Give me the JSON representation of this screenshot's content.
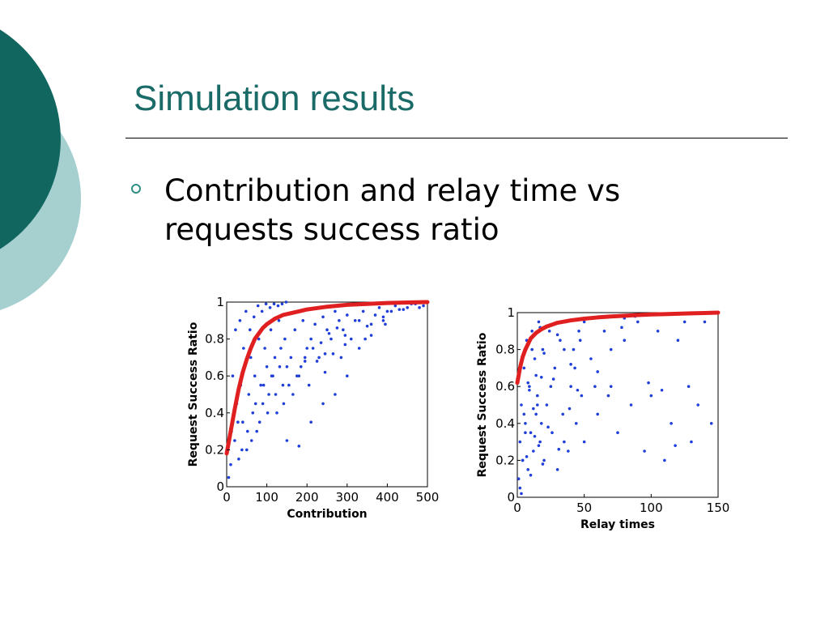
{
  "slide": {
    "title": "Simulation results",
    "bullet_lines": [
      "Contribution and relay time vs",
      "requests success ratio"
    ]
  },
  "theme": {
    "accent_dark": "#116760",
    "accent_light": "#a6cfcf",
    "title_color": "#1a6b68",
    "bullet_color": "#2f8e86"
  },
  "chart_data": [
    {
      "type": "scatter",
      "xlabel": "Contribution",
      "ylabel": "Request Success Ratio",
      "xlim": [
        0,
        500
      ],
      "ylim": [
        0,
        1
      ],
      "xticks": [
        "0",
        "100",
        "200",
        "300",
        "400",
        "500"
      ],
      "yticks": [
        "0",
        "0.2",
        "0.4",
        "0.6",
        "0.8",
        "1"
      ],
      "series": [
        {
          "kind": "scatter",
          "color": "#1f3fd8",
          "x": [
            5,
            10,
            12,
            20,
            25,
            30,
            35,
            40,
            45,
            50,
            55,
            60,
            65,
            70,
            75,
            80,
            85,
            90,
            95,
            100,
            105,
            110,
            115,
            120,
            125,
            130,
            135,
            140,
            145,
            150,
            160,
            170,
            180,
            190,
            200,
            210,
            220,
            230,
            240,
            250,
            260,
            270,
            280,
            290,
            300,
            320,
            340,
            360,
            380,
            400,
            420,
            440,
            460,
            480,
            500,
            15,
            22,
            28,
            33,
            38,
            42,
            48,
            52,
            58,
            62,
            68,
            72,
            78,
            82,
            88,
            92,
            98,
            102,
            108,
            112,
            118,
            122,
            128,
            132,
            138,
            142,
            148,
            155,
            165,
            175,
            185,
            195,
            205,
            215,
            225,
            235,
            245,
            255,
            265,
            275,
            285,
            295,
            310,
            330,
            350,
            370,
            390,
            410,
            430,
            450,
            470,
            490,
            150,
            180,
            210,
            240,
            270,
            300,
            330,
            360,
            390,
            195,
            245,
            295,
            345,
            395
          ],
          "y": [
            0.05,
            0.12,
            0.3,
            0.25,
            0.45,
            0.15,
            0.55,
            0.35,
            0.65,
            0.2,
            0.5,
            0.7,
            0.4,
            0.6,
            0.3,
            0.8,
            0.55,
            0.45,
            0.75,
            0.65,
            0.5,
            0.85,
            0.6,
            0.7,
            0.4,
            0.9,
            0.75,
            0.55,
            0.8,
            0.65,
            0.7,
            0.85,
            0.6,
            0.9,
            0.75,
            0.8,
            0.88,
            0.7,
            0.92,
            0.85,
            0.8,
            0.95,
            0.9,
            0.85,
            0.93,
            0.9,
            0.95,
            0.88,
            0.97,
            0.95,
            0.98,
            0.96,
            0.99,
            0.97,
            1.0,
            0.6,
            0.85,
            0.35,
            0.9,
            0.2,
            0.75,
            0.95,
            0.3,
            0.85,
            0.25,
            0.92,
            0.45,
            0.98,
            0.35,
            0.95,
            0.55,
            0.99,
            0.4,
            0.97,
            0.6,
            0.99,
            0.5,
            0.98,
            0.65,
            0.99,
            0.45,
            1.0,
            0.55,
            0.5,
            0.6,
            0.65,
            0.7,
            0.55,
            0.75,
            0.68,
            0.78,
            0.62,
            0.83,
            0.72,
            0.86,
            0.7,
            0.82,
            0.8,
            0.9,
            0.87,
            0.93,
            0.92,
            0.95,
            0.96,
            0.97,
            0.99,
            0.98,
            0.25,
            0.22,
            0.35,
            0.45,
            0.5,
            0.6,
            0.75,
            0.82,
            0.9,
            0.68,
            0.72,
            0.77,
            0.8,
            0.88
          ]
        },
        {
          "kind": "line",
          "color": "#e02020",
          "x": [
            0,
            10,
            20,
            30,
            40,
            50,
            60,
            70,
            80,
            90,
            100,
            120,
            140,
            160,
            180,
            200,
            250,
            300,
            350,
            400,
            450,
            500
          ],
          "y": [
            0.18,
            0.3,
            0.42,
            0.53,
            0.62,
            0.69,
            0.75,
            0.8,
            0.83,
            0.86,
            0.88,
            0.91,
            0.93,
            0.94,
            0.95,
            0.96,
            0.975,
            0.985,
            0.99,
            0.995,
            0.998,
            1.0
          ]
        }
      ]
    },
    {
      "type": "scatter",
      "xlabel": "Relay times",
      "ylabel": "Request Success Ratio",
      "xlim": [
        0,
        150
      ],
      "ylim": [
        0,
        1
      ],
      "xticks": [
        "0",
        "50",
        "100",
        "150"
      ],
      "yticks": [
        "0",
        "0.2",
        "0.4",
        "0.6",
        "0.8",
        "1"
      ],
      "series": [
        {
          "kind": "scatter",
          "color": "#1f3fd8",
          "x": [
            1,
            2,
            3,
            4,
            5,
            6,
            7,
            8,
            9,
            10,
            11,
            12,
            13,
            14,
            15,
            16,
            17,
            18,
            19,
            20,
            22,
            24,
            26,
            28,
            30,
            32,
            34,
            36,
            38,
            40,
            42,
            44,
            46,
            48,
            50,
            55,
            60,
            65,
            70,
            75,
            80,
            85,
            90,
            95,
            100,
            105,
            110,
            115,
            120,
            125,
            130,
            135,
            140,
            145,
            2,
            4,
            6,
            8,
            10,
            12,
            14,
            16,
            18,
            20,
            25,
            30,
            35,
            40,
            45,
            50,
            60,
            70,
            80,
            3,
            5,
            7,
            9,
            11,
            13,
            15,
            17,
            19,
            23,
            27,
            31,
            35,
            39,
            43,
            47,
            58,
            68,
            78,
            88,
            98,
            108,
            118,
            128
          ],
          "y": [
            0.1,
            0.3,
            0.5,
            0.2,
            0.7,
            0.4,
            0.85,
            0.15,
            0.6,
            0.35,
            0.9,
            0.25,
            0.75,
            0.45,
            0.55,
            0.95,
            0.3,
            0.65,
            0.8,
            0.2,
            0.5,
            0.9,
            0.35,
            0.7,
            0.15,
            0.85,
            0.45,
            0.95,
            0.25,
            0.6,
            0.8,
            0.4,
            0.9,
            0.55,
            0.3,
            0.75,
            0.45,
            0.9,
            0.6,
            0.35,
            0.85,
            0.5,
            0.95,
            0.25,
            0.55,
            0.9,
            0.2,
            0.4,
            0.85,
            0.95,
            0.3,
            0.5,
            0.95,
            0.4,
            0.05,
            0.2,
            0.35,
            0.62,
            0.12,
            0.48,
            0.66,
            0.28,
            0.4,
            0.78,
            0.6,
            0.88,
            0.3,
            0.72,
            0.58,
            0.95,
            0.68,
            0.8,
            0.97,
            0.02,
            0.45,
            0.22,
            0.58,
            0.8,
            0.33,
            0.5,
            0.92,
            0.18,
            0.38,
            0.64,
            0.26,
            0.8,
            0.48,
            0.7,
            0.85,
            0.6,
            0.55,
            0.92,
            0.98,
            0.62,
            0.58,
            0.28,
            0.6
          ]
        },
        {
          "kind": "line",
          "color": "#e02020",
          "x": [
            0,
            2,
            4,
            6,
            8,
            10,
            14,
            18,
            22,
            26,
            30,
            40,
            50,
            60,
            70,
            80,
            90,
            100,
            110,
            120,
            130,
            140,
            150
          ],
          "y": [
            0.62,
            0.7,
            0.76,
            0.8,
            0.83,
            0.86,
            0.89,
            0.91,
            0.925,
            0.935,
            0.945,
            0.958,
            0.967,
            0.974,
            0.979,
            0.983,
            0.987,
            0.99,
            0.992,
            0.994,
            0.996,
            0.998,
            1.0
          ]
        }
      ]
    }
  ]
}
